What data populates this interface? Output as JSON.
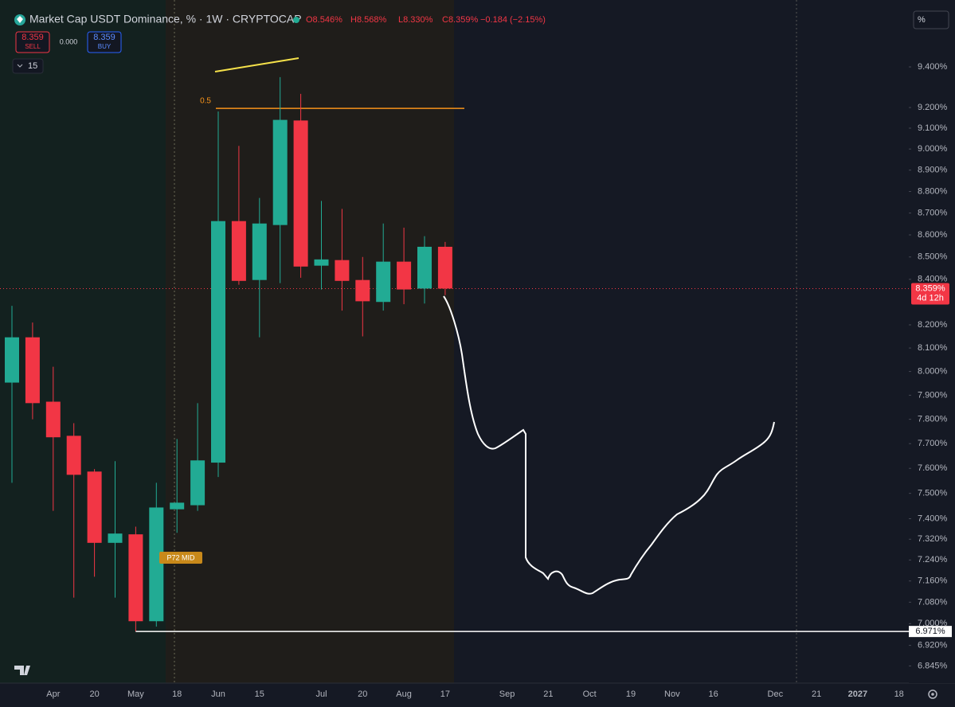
{
  "header": {
    "title": "Market Cap USDT Dominance, % · 1W · CRYPTOCAP",
    "open": "O8.546%",
    "high": "H8.568%",
    "low": "L8.330%",
    "close": "C8.359%",
    "change": "−0.184 (−2.15%)"
  },
  "trade": {
    "sell_price": "8.359",
    "sell": "SELL",
    "spread": "0.000",
    "buy_price": "8.359",
    "buy": "BUY",
    "interval": "15"
  },
  "scale_button": "%",
  "chart_data": {
    "type": "candlestick",
    "log_scale": true,
    "grid": false,
    "up_color": "#22ab94",
    "down_color": "#f23645",
    "categories": [
      null,
      null,
      "Apr",
      null,
      "20",
      null,
      "May",
      null,
      "18",
      null,
      "Jun",
      null,
      "15",
      null,
      null,
      "Jul",
      null,
      "20",
      null,
      "Aug",
      null,
      "17",
      null,
      null,
      "Sep",
      null,
      "21",
      null,
      "Oct",
      null,
      "19",
      null,
      "Nov",
      null,
      "16",
      null,
      null,
      "Dec",
      null,
      "21",
      null,
      "2027",
      null,
      "18"
    ],
    "open": [
      7.953,
      8.146,
      7.873,
      7.732,
      7.587,
      7.306,
      7.339,
      7.009,
      7.437,
      7.453,
      7.623,
      8.663,
      8.397,
      8.645,
      9.137,
      8.461,
      8.486,
      8.397,
      8.3,
      8.479,
      8.359,
      8.546,
      null,
      null,
      null,
      null,
      null,
      null,
      null,
      null,
      null,
      null,
      null,
      null,
      null,
      null,
      null,
      null,
      null,
      null,
      null,
      null,
      null,
      null
    ],
    "high": [
      8.283,
      8.21,
      8.02,
      7.784,
      7.597,
      7.629,
      7.369,
      7.542,
      7.719,
      7.867,
      9.181,
      9.015,
      8.77,
      9.349,
      9.267,
      8.756,
      8.719,
      8.5,
      8.652,
      8.633,
      8.594,
      8.568,
      null,
      null,
      null,
      null,
      null,
      null,
      null,
      null,
      null,
      null,
      null,
      null,
      null,
      null,
      null,
      null,
      null,
      null,
      null,
      null,
      null,
      null
    ],
    "low": [
      7.542,
      7.8,
      7.431,
      7.097,
      7.176,
      7.097,
      6.971,
      6.989,
      7.345,
      7.431,
      7.565,
      8.376,
      8.146,
      8.383,
      8.407,
      8.355,
      8.262,
      8.15,
      8.262,
      8.29,
      8.293,
      8.33,
      null,
      null,
      null,
      null,
      null,
      null,
      null,
      null,
      null,
      null,
      null,
      null,
      null,
      null,
      null,
      null,
      null,
      null,
      null,
      null,
      null,
      null
    ],
    "close": [
      8.146,
      7.867,
      7.726,
      7.574,
      7.306,
      7.342,
      7.009,
      7.444,
      7.463,
      7.632,
      8.663,
      8.393,
      8.652,
      9.14,
      8.457,
      8.489,
      8.393,
      8.303,
      8.479,
      8.355,
      8.546,
      8.359,
      null,
      null,
      null,
      null,
      null,
      null,
      null,
      null,
      null,
      null,
      null,
      null,
      null,
      null,
      null,
      null,
      null,
      null,
      null,
      null,
      null,
      null
    ],
    "ylim": [
      6.783,
      9.698
    ],
    "yticks": [
      {
        "value": 9.4,
        "label": "9.400%"
      },
      {
        "value": 9.2,
        "label": "9.200%"
      },
      {
        "value": 9.1,
        "label": "9.100%"
      },
      {
        "value": 9.0,
        "label": "9.000%"
      },
      {
        "value": 8.9,
        "label": "8.900%"
      },
      {
        "value": 8.8,
        "label": "8.800%"
      },
      {
        "value": 8.7,
        "label": "8.700%"
      },
      {
        "value": 8.6,
        "label": "8.600%"
      },
      {
        "value": 8.5,
        "label": "8.500%"
      },
      {
        "value": 8.4,
        "label": "8.400%"
      },
      {
        "value": 8.2,
        "label": "8.200%"
      },
      {
        "value": 8.1,
        "label": "8.100%"
      },
      {
        "value": 8.0,
        "label": "8.000%"
      },
      {
        "value": 7.9,
        "label": "7.900%"
      },
      {
        "value": 7.8,
        "label": "7.800%"
      },
      {
        "value": 7.7,
        "label": "7.700%"
      },
      {
        "value": 7.6,
        "label": "7.600%"
      },
      {
        "value": 7.5,
        "label": "7.500%"
      },
      {
        "value": 7.4,
        "label": "7.400%"
      },
      {
        "value": 7.32,
        "label": "7.320%"
      },
      {
        "value": 7.24,
        "label": "7.240%"
      },
      {
        "value": 7.16,
        "label": "7.160%"
      },
      {
        "value": 7.08,
        "label": "7.080%"
      },
      {
        "value": 7.0,
        "label": "7.000%"
      },
      {
        "value": 6.92,
        "label": "6.920%"
      },
      {
        "value": 6.845,
        "label": "6.845%"
      }
    ],
    "last_price": {
      "value": 8.359,
      "label": "8.359%",
      "countdown": "4d 12h"
    },
    "low_line": {
      "value": 6.971,
      "label": "6.971%"
    },
    "fib_level": {
      "value": 9.196,
      "label": "0.5"
    },
    "tag": "P72 MID"
  }
}
